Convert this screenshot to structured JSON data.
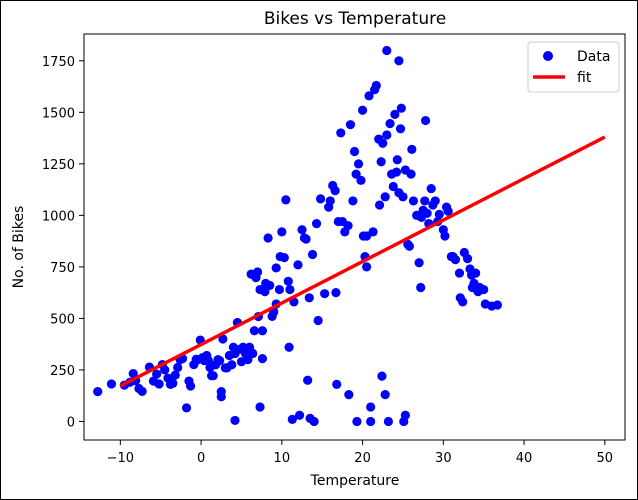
{
  "chart_data": {
    "type": "scatter",
    "title": "Bikes vs Temperature",
    "xlabel": "Temperature",
    "ylabel": "No. of Bikes",
    "xlim": [
      -14.5,
      52.5
    ],
    "ylim": [
      -90,
      1880
    ],
    "xticks": [
      -10,
      0,
      10,
      20,
      30,
      40,
      50
    ],
    "yticks": [
      0,
      250,
      500,
      750,
      1000,
      1250,
      1500,
      1750
    ],
    "grid": false,
    "legend": {
      "placement": "top-right",
      "entries": [
        "Data",
        "fit"
      ]
    },
    "series": [
      {
        "name": "Data",
        "kind": "scatter",
        "color": "#0000ff",
        "points": [
          [
            -12.8,
            145
          ],
          [
            -11.1,
            182
          ],
          [
            -9.5,
            176
          ],
          [
            -8.8,
            190
          ],
          [
            -8.4,
            232
          ],
          [
            -8.1,
            198
          ],
          [
            -7.7,
            160
          ],
          [
            -7.3,
            146
          ],
          [
            -6.4,
            264
          ],
          [
            -5.9,
            196
          ],
          [
            -5.5,
            230
          ],
          [
            -5.2,
            182
          ],
          [
            -4.8,
            276
          ],
          [
            -4.5,
            250
          ],
          [
            -4.1,
            210
          ],
          [
            -3.8,
            180
          ],
          [
            -3.5,
            185
          ],
          [
            -3.2,
            225
          ],
          [
            -2.9,
            262
          ],
          [
            -2.6,
            300
          ],
          [
            -2.3,
            305
          ],
          [
            -1.8,
            66
          ],
          [
            -1.5,
            196
          ],
          [
            -1.3,
            172
          ],
          [
            -0.9,
            276
          ],
          [
            -0.6,
            302
          ],
          [
            -0.4,
            300
          ],
          [
            -0.1,
            395
          ],
          [
            0.2,
            310
          ],
          [
            0.4,
            295
          ],
          [
            0.7,
            320
          ],
          [
            0.9,
            296
          ],
          [
            1.1,
            262
          ],
          [
            1.3,
            222
          ],
          [
            1.5,
            222
          ],
          [
            1.8,
            275
          ],
          [
            2.1,
            300
          ],
          [
            2.3,
            295
          ],
          [
            2.5,
            145
          ],
          [
            2.5,
            120
          ],
          [
            2.7,
            400
          ],
          [
            3.0,
            260
          ],
          [
            3.2,
            260
          ],
          [
            3.5,
            320
          ],
          [
            3.8,
            275
          ],
          [
            4.0,
            360
          ],
          [
            4.2,
            330
          ],
          [
            4.2,
            5
          ],
          [
            4.5,
            480
          ],
          [
            4.8,
            350
          ],
          [
            5.0,
            290
          ],
          [
            5.2,
            360
          ],
          [
            5.5,
            330
          ],
          [
            5.8,
            300
          ],
          [
            6.0,
            360
          ],
          [
            6.2,
            715
          ],
          [
            6.4,
            330
          ],
          [
            6.6,
            440
          ],
          [
            6.8,
            698
          ],
          [
            7.0,
            725
          ],
          [
            7.1,
            509
          ],
          [
            7.3,
            640
          ],
          [
            7.3,
            70
          ],
          [
            7.6,
            440
          ],
          [
            7.6,
            305
          ],
          [
            7.9,
            630
          ],
          [
            8.0,
            670
          ],
          [
            8.3,
            890
          ],
          [
            8.5,
            660
          ],
          [
            8.8,
            510
          ],
          [
            9.0,
            532
          ],
          [
            9.3,
            745
          ],
          [
            9.3,
            570
          ],
          [
            9.7,
            640
          ],
          [
            9.8,
            800
          ],
          [
            10.0,
            920
          ],
          [
            10.3,
            795
          ],
          [
            10.5,
            1075
          ],
          [
            10.8,
            680
          ],
          [
            10.9,
            360
          ],
          [
            11.0,
            640
          ],
          [
            11.3,
            10
          ],
          [
            11.5,
            580
          ],
          [
            12.0,
            760
          ],
          [
            12.2,
            30
          ],
          [
            12.5,
            930
          ],
          [
            12.8,
            890
          ],
          [
            13.0,
            885
          ],
          [
            13.2,
            200
          ],
          [
            13.4,
            600
          ],
          [
            13.5,
            15
          ],
          [
            13.8,
            810
          ],
          [
            14.0,
            0
          ],
          [
            14.3,
            960
          ],
          [
            14.5,
            490
          ],
          [
            14.8,
            1080
          ],
          [
            15.3,
            620
          ],
          [
            15.8,
            1040
          ],
          [
            16.0,
            1070
          ],
          [
            16.3,
            1145
          ],
          [
            16.6,
            1120
          ],
          [
            16.7,
            625
          ],
          [
            16.8,
            180
          ],
          [
            17.0,
            970
          ],
          [
            17.3,
            1400
          ],
          [
            17.5,
            970
          ],
          [
            17.8,
            920
          ],
          [
            18.2,
            950
          ],
          [
            18.3,
            130
          ],
          [
            18.5,
            1440
          ],
          [
            18.8,
            1070
          ],
          [
            19.0,
            1310
          ],
          [
            19.2,
            1200
          ],
          [
            19.3,
            0
          ],
          [
            19.5,
            1250
          ],
          [
            19.8,
            1170
          ],
          [
            20.0,
            1510
          ],
          [
            20.1,
            900
          ],
          [
            20.3,
            800
          ],
          [
            20.5,
            900
          ],
          [
            20.5,
            750
          ],
          [
            20.8,
            1580
          ],
          [
            21.0,
            70
          ],
          [
            21.0,
            0
          ],
          [
            21.3,
            920
          ],
          [
            21.5,
            1610
          ],
          [
            21.7,
            1630
          ],
          [
            22.0,
            1370
          ],
          [
            22.1,
            1050
          ],
          [
            22.3,
            1260
          ],
          [
            22.4,
            220
          ],
          [
            22.5,
            1350
          ],
          [
            22.8,
            1090
          ],
          [
            22.8,
            130
          ],
          [
            23.0,
            1800
          ],
          [
            23.0,
            1390
          ],
          [
            23.2,
            0
          ],
          [
            23.4,
            1445
          ],
          [
            23.6,
            1200
          ],
          [
            23.8,
            1140
          ],
          [
            24.0,
            1490
          ],
          [
            24.2,
            1210
          ],
          [
            24.3,
            1270
          ],
          [
            24.5,
            1110
          ],
          [
            24.5,
            1750
          ],
          [
            24.7,
            1420
          ],
          [
            24.8,
            1520
          ],
          [
            25.0,
            1090
          ],
          [
            25.1,
            0
          ],
          [
            25.3,
            1220
          ],
          [
            25.3,
            30
          ],
          [
            25.6,
            860
          ],
          [
            25.8,
            850
          ],
          [
            26.0,
            1200
          ],
          [
            26.1,
            1320
          ],
          [
            26.3,
            1070
          ],
          [
            26.7,
            1000
          ],
          [
            27.0,
            770
          ],
          [
            27.2,
            650
          ],
          [
            27.3,
            990
          ],
          [
            27.5,
            1025
          ],
          [
            27.7,
            1070
          ],
          [
            27.8,
            1460
          ],
          [
            28.0,
            1010
          ],
          [
            28.2,
            960
          ],
          [
            28.5,
            1130
          ],
          [
            28.7,
            1050
          ],
          [
            29.0,
            1070
          ],
          [
            29.3,
            970
          ],
          [
            29.5,
            1005
          ],
          [
            30.0,
            930
          ],
          [
            30.2,
            900
          ],
          [
            30.4,
            1040
          ],
          [
            30.6,
            1020
          ],
          [
            31.0,
            800
          ],
          [
            31.2,
            800
          ],
          [
            31.5,
            785
          ],
          [
            32.0,
            720
          ],
          [
            32.1,
            600
          ],
          [
            32.4,
            580
          ],
          [
            32.6,
            820
          ],
          [
            33.0,
            790
          ],
          [
            33.3,
            740
          ],
          [
            33.5,
            710
          ],
          [
            33.6,
            650
          ],
          [
            33.8,
            670
          ],
          [
            34.0,
            720
          ],
          [
            34.3,
            630
          ],
          [
            34.5,
            650
          ],
          [
            35.0,
            640
          ],
          [
            35.2,
            570
          ],
          [
            36.0,
            560
          ],
          [
            36.7,
            565
          ]
        ]
      },
      {
        "name": "fit",
        "kind": "line",
        "color": "#ff0000",
        "x": [
          -10,
          50
        ],
        "y": [
          172,
          1380
        ]
      }
    ]
  }
}
